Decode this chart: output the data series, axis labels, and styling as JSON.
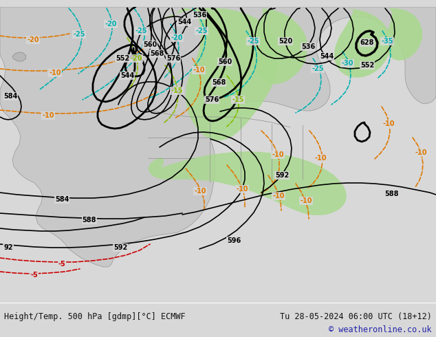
{
  "title_left": "Height/Temp. 500 hPa [gdmp][°C] ECMWF",
  "title_right": "Tu 28-05-2024 06:00 UTC (18+12)",
  "copyright": "© weatheronline.co.uk",
  "bg_color": "#d8d8d8",
  "map_color": "#d0d0d0",
  "green_color": "#aad890",
  "land_color": "#c0c0c0",
  "black": "#000000",
  "cyan": "#00b0b0",
  "orange": "#e07800",
  "red": "#cc0000",
  "ygreen": "#88bb00",
  "blue": "#2222aa",
  "white": "#ffffff",
  "lw_thick": 2.0,
  "lw_thin": 1.2,
  "lw_border": 0.5,
  "fs_label": 7.0,
  "fs_title": 8.5,
  "figsize": [
    6.34,
    4.9
  ],
  "dpi": 100
}
